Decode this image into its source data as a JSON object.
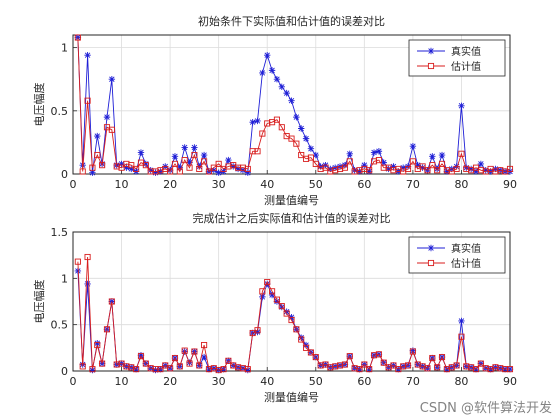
{
  "chart_data": [
    {
      "type": "line",
      "title": "初始条件下实际值和估计值的误差对比",
      "xlabel": "测量值编号",
      "ylabel": "电压幅度",
      "xlim": [
        0,
        90
      ],
      "ylim": [
        0,
        1.1
      ],
      "xticks": [
        "0",
        "10",
        "20",
        "30",
        "40",
        "50",
        "60",
        "70",
        "80",
        "90"
      ],
      "yticks": [
        "0",
        "0.5",
        "1"
      ],
      "ytick_values": [
        0,
        0.5,
        1
      ],
      "grid": true,
      "legend_position": "top-right",
      "x": [
        1,
        2,
        3,
        4,
        5,
        6,
        7,
        8,
        9,
        10,
        11,
        12,
        13,
        14,
        15,
        16,
        17,
        18,
        19,
        20,
        21,
        22,
        23,
        24,
        25,
        26,
        27,
        28,
        29,
        30,
        31,
        32,
        33,
        34,
        35,
        36,
        37,
        38,
        39,
        40,
        41,
        42,
        43,
        44,
        45,
        46,
        47,
        48,
        49,
        50,
        51,
        52,
        53,
        54,
        55,
        56,
        57,
        58,
        59,
        60,
        61,
        62,
        63,
        64,
        65,
        66,
        67,
        68,
        69,
        70,
        71,
        72,
        73,
        74,
        75,
        76,
        77,
        78,
        79,
        80,
        81,
        82,
        83,
        84,
        85,
        86,
        87,
        88,
        89,
        90
      ],
      "series": [
        {
          "name": "真实值",
          "color": "#1f1fd6",
          "marker": "asterisk",
          "values": [
            1.08,
            0.07,
            0.94,
            0.01,
            0.3,
            0.08,
            0.45,
            0.75,
            0.07,
            0.08,
            0.05,
            0.04,
            0.02,
            0.17,
            0.08,
            0.03,
            0.01,
            0.02,
            0.06,
            0.03,
            0.14,
            0.05,
            0.21,
            0.09,
            0.21,
            0.06,
            0.15,
            0.02,
            0.03,
            0.01,
            0.02,
            0.11,
            0.06,
            0.04,
            0.03,
            0.01,
            0.41,
            0.42,
            0.8,
            0.94,
            0.82,
            0.75,
            0.69,
            0.64,
            0.58,
            0.45,
            0.36,
            0.28,
            0.2,
            0.15,
            0.06,
            0.07,
            0.04,
            0.05,
            0.06,
            0.07,
            0.16,
            0.03,
            0.02,
            0.07,
            0.02,
            0.17,
            0.18,
            0.09,
            0.04,
            0.06,
            0.02,
            0.05,
            0.06,
            0.22,
            0.07,
            0.05,
            0.03,
            0.14,
            0.04,
            0.15,
            0.02,
            0.04,
            0.06,
            0.54,
            0.05,
            0.04,
            0.02,
            0.08,
            0.03,
            0.02,
            0.04,
            0.03,
            0.02,
            0.02
          ]
        },
        {
          "name": "估计值",
          "color": "#d81e1e",
          "marker": "square",
          "values": [
            1.08,
            0.02,
            0.58,
            0.05,
            0.15,
            0.07,
            0.37,
            0.35,
            0.06,
            0.05,
            0.08,
            0.07,
            0.04,
            0.09,
            0.07,
            0.02,
            0.02,
            0.03,
            0.04,
            0.02,
            0.08,
            0.02,
            0.11,
            0.05,
            0.15,
            0.04,
            0.1,
            0.02,
            0.05,
            0.08,
            0.04,
            0.06,
            0.07,
            0.05,
            0.05,
            0.04,
            0.18,
            0.18,
            0.32,
            0.4,
            0.41,
            0.43,
            0.37,
            0.3,
            0.28,
            0.24,
            0.15,
            0.12,
            0.13,
            0.08,
            0.04,
            0.05,
            0.02,
            0.03,
            0.04,
            0.05,
            0.1,
            0.02,
            0.03,
            0.04,
            0.03,
            0.1,
            0.11,
            0.05,
            0.05,
            0.03,
            0.04,
            0.02,
            0.04,
            0.1,
            0.04,
            0.06,
            0.03,
            0.07,
            0.03,
            0.08,
            0.03,
            0.02,
            0.04,
            0.16,
            0.04,
            0.03,
            0.05,
            0.03,
            0.02,
            0.04,
            0.02,
            0.03,
            0.02,
            0.04
          ]
        }
      ]
    },
    {
      "type": "line",
      "title": "完成估计之后实际值和估计值的误差对比",
      "xlabel": "测量值编号",
      "ylabel": "电压幅度",
      "xlim": [
        0,
        90
      ],
      "ylim": [
        0,
        1.5
      ],
      "xticks": [
        "0",
        "10",
        "20",
        "30",
        "40",
        "50",
        "60",
        "70",
        "80",
        "90"
      ],
      "yticks": [
        "0",
        "0.5",
        "1",
        "1.5"
      ],
      "ytick_values": [
        0,
        0.5,
        1,
        1.5
      ],
      "grid": true,
      "legend_position": "top-right",
      "x": [
        1,
        2,
        3,
        4,
        5,
        6,
        7,
        8,
        9,
        10,
        11,
        12,
        13,
        14,
        15,
        16,
        17,
        18,
        19,
        20,
        21,
        22,
        23,
        24,
        25,
        26,
        27,
        28,
        29,
        30,
        31,
        32,
        33,
        34,
        35,
        36,
        37,
        38,
        39,
        40,
        41,
        42,
        43,
        44,
        45,
        46,
        47,
        48,
        49,
        50,
        51,
        52,
        53,
        54,
        55,
        56,
        57,
        58,
        59,
        60,
        61,
        62,
        63,
        64,
        65,
        66,
        67,
        68,
        69,
        70,
        71,
        72,
        73,
        74,
        75,
        76,
        77,
        78,
        79,
        80,
        81,
        82,
        83,
        84,
        85,
        86,
        87,
        88,
        89,
        90
      ],
      "series": [
        {
          "name": "真实值",
          "color": "#1f1fd6",
          "marker": "asterisk",
          "values": [
            1.08,
            0.07,
            0.94,
            0.01,
            0.3,
            0.08,
            0.45,
            0.75,
            0.07,
            0.08,
            0.05,
            0.04,
            0.02,
            0.17,
            0.08,
            0.03,
            0.01,
            0.02,
            0.06,
            0.03,
            0.14,
            0.05,
            0.21,
            0.09,
            0.21,
            0.06,
            0.15,
            0.02,
            0.03,
            0.01,
            0.02,
            0.11,
            0.06,
            0.04,
            0.03,
            0.01,
            0.41,
            0.42,
            0.8,
            0.94,
            0.82,
            0.75,
            0.69,
            0.64,
            0.58,
            0.45,
            0.36,
            0.28,
            0.2,
            0.15,
            0.06,
            0.07,
            0.04,
            0.05,
            0.06,
            0.07,
            0.16,
            0.03,
            0.02,
            0.07,
            0.02,
            0.17,
            0.18,
            0.09,
            0.04,
            0.06,
            0.02,
            0.05,
            0.06,
            0.22,
            0.07,
            0.05,
            0.03,
            0.14,
            0.04,
            0.15,
            0.02,
            0.04,
            0.06,
            0.54,
            0.05,
            0.04,
            0.02,
            0.08,
            0.03,
            0.02,
            0.04,
            0.03,
            0.02,
            0.02
          ]
        },
        {
          "name": "估计值",
          "color": "#d81e1e",
          "marker": "square",
          "values": [
            1.18,
            0.05,
            1.23,
            0.02,
            0.28,
            0.08,
            0.45,
            0.75,
            0.07,
            0.08,
            0.05,
            0.04,
            0.02,
            0.16,
            0.08,
            0.03,
            0.02,
            0.02,
            0.06,
            0.03,
            0.14,
            0.05,
            0.22,
            0.08,
            0.21,
            0.06,
            0.28,
            0.02,
            0.03,
            0.01,
            0.02,
            0.11,
            0.06,
            0.04,
            0.03,
            0.02,
            0.41,
            0.44,
            0.86,
            0.96,
            0.86,
            0.77,
            0.7,
            0.62,
            0.55,
            0.45,
            0.34,
            0.25,
            0.2,
            0.15,
            0.06,
            0.07,
            0.04,
            0.05,
            0.06,
            0.07,
            0.16,
            0.03,
            0.02,
            0.07,
            0.02,
            0.17,
            0.18,
            0.09,
            0.04,
            0.06,
            0.02,
            0.05,
            0.06,
            0.21,
            0.07,
            0.05,
            0.03,
            0.14,
            0.04,
            0.15,
            0.02,
            0.04,
            0.06,
            0.37,
            0.05,
            0.04,
            0.02,
            0.08,
            0.03,
            0.02,
            0.04,
            0.03,
            0.02,
            0.02
          ]
        }
      ]
    }
  ],
  "watermark": "CSDN @软件算法开发"
}
